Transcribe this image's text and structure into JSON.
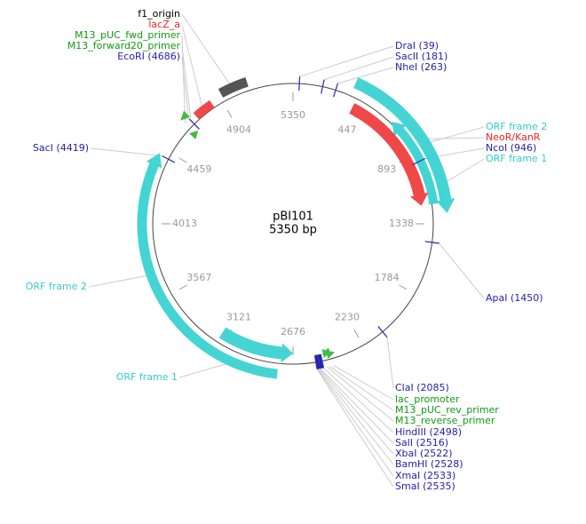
{
  "map": {
    "title": "pBI101",
    "subtitle": "5350 bp",
    "ruler": [
      5350,
      447,
      893,
      1338,
      1784,
      2230,
      2676,
      3121,
      3567,
      4013,
      4459,
      4904
    ],
    "labels": [
      {
        "text": "f1_origin",
        "color": "#000000"
      },
      {
        "text": "lacZ_a",
        "color": "#ee2222"
      },
      {
        "text": "M13_pUC_fwd_primer",
        "color": "#119911"
      },
      {
        "text": "M13_forward20_primer",
        "color": "#119911"
      },
      {
        "text": "EcoRI (4686)",
        "color": "#2222aa"
      },
      {
        "text": "DraI (39)",
        "color": "#2222aa"
      },
      {
        "text": "SacII (181)",
        "color": "#2222aa"
      },
      {
        "text": "NheI (263)",
        "color": "#2222aa"
      },
      {
        "text": "ORF frame 2",
        "color": "#33cccc"
      },
      {
        "text": "NeoR/KanR",
        "color": "#ee2222"
      },
      {
        "text": "NcoI (946)",
        "color": "#2222aa"
      },
      {
        "text": "ORF frame 1",
        "color": "#33cccc"
      },
      {
        "text": "SacI (4419)",
        "color": "#2222aa"
      },
      {
        "text": "ApaI (1450)",
        "color": "#2222aa"
      },
      {
        "text": "ORF frame 2",
        "color": "#33cccc"
      },
      {
        "text": "ORF frame 1",
        "color": "#33cccc"
      },
      {
        "text": "ClaI (2085)",
        "color": "#2222aa"
      },
      {
        "text": "lac_promoter",
        "color": "#119911"
      },
      {
        "text": "M13_pUC_rev_primer",
        "color": "#119911"
      },
      {
        "text": "M13_reverse_primer",
        "color": "#119911"
      },
      {
        "text": "HindIII (2498)",
        "color": "#2222aa"
      },
      {
        "text": "SalI (2516)",
        "color": "#2222aa"
      },
      {
        "text": "XbaI (2522)",
        "color": "#2222aa"
      },
      {
        "text": "BamHI (2528)",
        "color": "#2222aa"
      },
      {
        "text": "XmaI (2533)",
        "color": "#2222aa"
      },
      {
        "text": "SmaI (2535)",
        "color": "#2222aa"
      }
    ]
  }
}
